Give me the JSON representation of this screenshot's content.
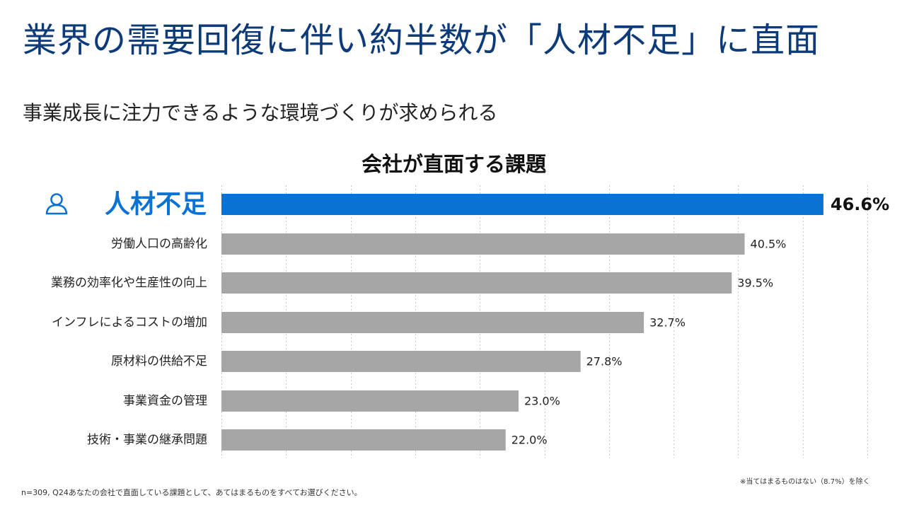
{
  "page": {
    "title": "業界の需要回復に伴い約半数が「人材不足」に直面",
    "subtitle": "事業成長に注力できるような環境づくりが求められる",
    "footnote_left": "n=309, Q24あなたの会社で直面している課題として、あてはまるものをすべてお選びください。",
    "footnote_right": "※当てはまるものはない（8.7%）を除く"
  },
  "colors": {
    "title": "#0d3a78",
    "highlight_bar": "#0a72d2",
    "highlight_text": "#0a72d2",
    "default_bar": "#a6a6a6",
    "gridline": "#c8c8c8"
  },
  "chart_data": {
    "type": "bar",
    "orientation": "horizontal",
    "title": "会社が直面する課題",
    "categories": [
      "人材不足",
      "労働人口の高齢化",
      "業務の効率化や生産性の向上",
      "インフレによるコストの増加",
      "原材料の供給不足",
      "事業資金の管理",
      "技術・事業の継承問題"
    ],
    "values": [
      46.6,
      40.5,
      39.5,
      32.7,
      27.8,
      23.0,
      22.0
    ],
    "value_labels": [
      "46.6%",
      "40.5%",
      "39.5%",
      "32.7%",
      "27.8%",
      "23.0%",
      "22.0%"
    ],
    "highlight_index": 0,
    "highlight_icon": "person-icon",
    "unit": "%",
    "xlim": [
      0,
      50
    ],
    "grid": true,
    "xlabel": "",
    "ylabel": ""
  }
}
